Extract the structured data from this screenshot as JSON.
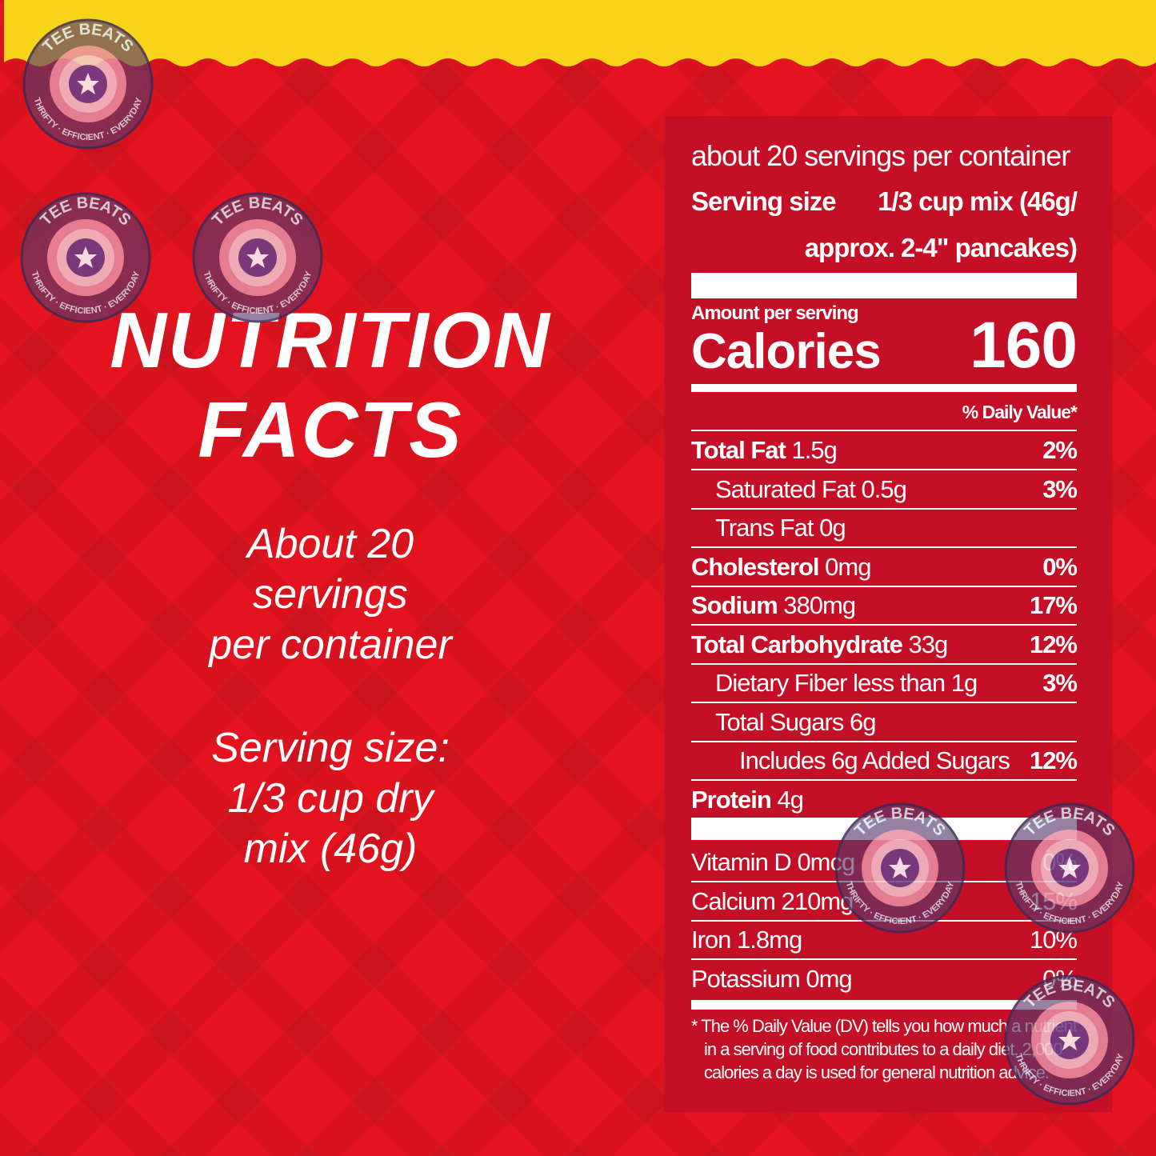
{
  "left": {
    "title_lines": [
      "NUTRITION",
      "FACTS"
    ],
    "servings_lines": [
      "About 20",
      "servings",
      "per container"
    ],
    "serving_size_lines": [
      "Serving size:",
      "1/3 cup dry",
      "mix (46g)"
    ]
  },
  "label": {
    "servings_per_container": "about 20 servings per container",
    "serving_size_label": "Serving size",
    "serving_size_value_lines": [
      "1/3 cup mix (46g/",
      "approx. 2-4\" pancakes)"
    ],
    "amount_per_serving": "Amount per serving",
    "calories_label": "Calories",
    "calories": "160",
    "dv_header": "% Daily Value*",
    "nutrients": [
      {
        "name": "Total Fat",
        "amount": "1.5g",
        "dv": "2%",
        "bold": true,
        "indent": 0
      },
      {
        "name": "Saturated Fat",
        "amount": "0.5g",
        "dv": "3%",
        "bold": false,
        "indent": 1
      },
      {
        "name": "Trans Fat",
        "amount": "0g",
        "dv": null,
        "bold": false,
        "indent": 1
      },
      {
        "name": "Cholesterol",
        "amount": "0mg",
        "dv": "0%",
        "bold": true,
        "indent": 0
      },
      {
        "name": "Sodium",
        "amount": "380mg",
        "dv": "17%",
        "bold": true,
        "indent": 0
      },
      {
        "name": "Total Carbohydrate",
        "amount": "33g",
        "dv": "12%",
        "bold": true,
        "indent": 0
      },
      {
        "name": "Dietary Fiber",
        "amount": "less than 1g",
        "dv": "3%",
        "bold": false,
        "indent": 1
      },
      {
        "name": "Total Sugars",
        "amount": "6g",
        "dv": null,
        "bold": false,
        "indent": 1
      },
      {
        "name": "Includes 6g Added Sugars",
        "amount": null,
        "dv": "12%",
        "bold": false,
        "indent": 2
      },
      {
        "name": "Protein",
        "amount": "4g",
        "dv": null,
        "bold": true,
        "indent": 0
      }
    ],
    "vitamins": [
      {
        "name": "Vitamin D",
        "amount": "0mcg",
        "dv": "0%"
      },
      {
        "name": "Calcium",
        "amount": "210mg",
        "dv": "15%"
      },
      {
        "name": "Iron",
        "amount": "1.8mg",
        "dv": "10%"
      },
      {
        "name": "Potassium",
        "amount": "0mg",
        "dv": "0%"
      }
    ],
    "footnote_lines": [
      "* The % Daily Value (DV) tells you how much a nutrient",
      "in a serving of food contributes to a daily diet. 2,000",
      "calories a day is used for general nutrition advice."
    ]
  },
  "watermark": {
    "top": "TEE BEATS",
    "bottom": "THRIFTY · EFFICIENT · EVERYDAY"
  }
}
